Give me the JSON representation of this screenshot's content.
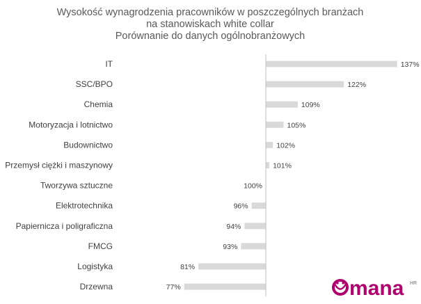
{
  "chart_data": {
    "type": "bar",
    "orientation": "horizontal",
    "title": [
      "Wysokość wynagrodzenia pracowników w poszczególnych branżach",
      "na stanowiskach white collar",
      "Porównanie do danych ogólnobranżowych"
    ],
    "baseline": 100,
    "unit": "%",
    "categories": [
      "IT",
      "SSC/BPO",
      "Chemia",
      "Motoryzacja i lotnictwo",
      "Budownictwo",
      "Przemysł ciężki i maszynowy",
      "Tworzywa sztuczne",
      "Elektrotechnika",
      "Papiernicza i poligraficzna",
      "FMCG",
      "Logistyka",
      "Drzewna"
    ],
    "values": [
      137,
      122,
      109,
      105,
      102,
      101,
      100,
      96,
      94,
      93,
      81,
      77
    ],
    "value_labels": [
      "137%",
      "122%",
      "109%",
      "105%",
      "102%",
      "101%",
      "100%",
      "96%",
      "94%",
      "93%",
      "81%",
      "77%"
    ],
    "bar_color": "#d9d9d9",
    "axis_color": "#bfbfbf",
    "grid": false,
    "legend": "none"
  },
  "logo": {
    "text": "mana",
    "suffix": "HR",
    "color": "#b0006d"
  }
}
